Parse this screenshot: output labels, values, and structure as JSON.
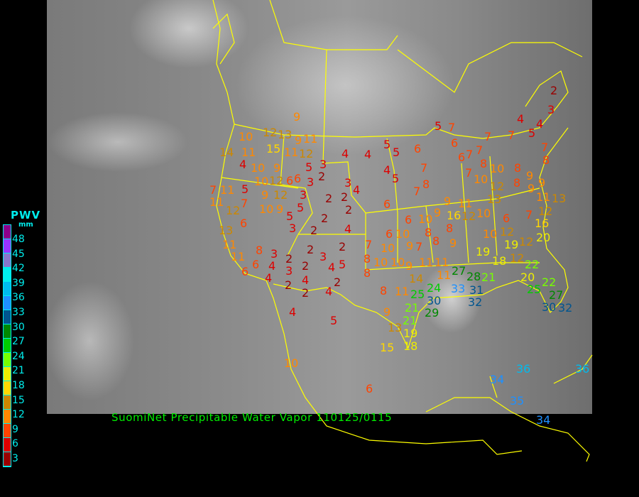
{
  "caption": "SuomiNet Precipitable Water Vapor 110125/0115",
  "legend": {
    "title": "PWV",
    "unit": "mm",
    "labels": [
      "48",
      "45",
      "42",
      "39",
      "36",
      "33",
      "30",
      "27",
      "24",
      "21",
      "18",
      "15",
      "12",
      "9",
      "6",
      "3"
    ],
    "colors": [
      "#8b008b",
      "#9933ff",
      "#8877cc",
      "#00eeee",
      "#00bbee",
      "#1e90ff",
      "#00558f",
      "#008800",
      "#00cc00",
      "#77ff00",
      "#eeee00",
      "#ffd700",
      "#cc8800",
      "#ff8800",
      "#ff4400",
      "#dd0000",
      "#990000"
    ]
  },
  "boundary_color": "#ffff00",
  "stations_mm": [
    9,
    12,
    13,
    10,
    15,
    9,
    11,
    11,
    12,
    14,
    11,
    4,
    10,
    9,
    10,
    12,
    6,
    6,
    7,
    11,
    5,
    9,
    12,
    10,
    9,
    11,
    12,
    7,
    6,
    5,
    3,
    13,
    11,
    11,
    8,
    6,
    6,
    3,
    4,
    4,
    2,
    3,
    2,
    2,
    4,
    2,
    4,
    5,
    3,
    2,
    4,
    2,
    5,
    2,
    4,
    2,
    2,
    4,
    5,
    3,
    2,
    3,
    3,
    5,
    2,
    2,
    3,
    4,
    2,
    4,
    4,
    5,
    5,
    4,
    5,
    6,
    6,
    7,
    7,
    8,
    5,
    7,
    6,
    6,
    7,
    7,
    7,
    8,
    7,
    7,
    4,
    5,
    4,
    2,
    3,
    7,
    8,
    10,
    10,
    8,
    8,
    9,
    9,
    9,
    11,
    12,
    13,
    11,
    12,
    10,
    16,
    9,
    10,
    9,
    6,
    6,
    8,
    10,
    8,
    7,
    10,
    9,
    7,
    9,
    8,
    8,
    8,
    10,
    10,
    9,
    11,
    11,
    11,
    14,
    24,
    25,
    11,
    21,
    30,
    29,
    21,
    9,
    13,
    19,
    18,
    15,
    27,
    28,
    33,
    31,
    32,
    21,
    19,
    18,
    19,
    12,
    12,
    12,
    20,
    22,
    20,
    22,
    27,
    25,
    30,
    32,
    12,
    16,
    13,
    7,
    6,
    10,
    8,
    10,
    6,
    34,
    36,
    36,
    35,
    34
  ]
}
